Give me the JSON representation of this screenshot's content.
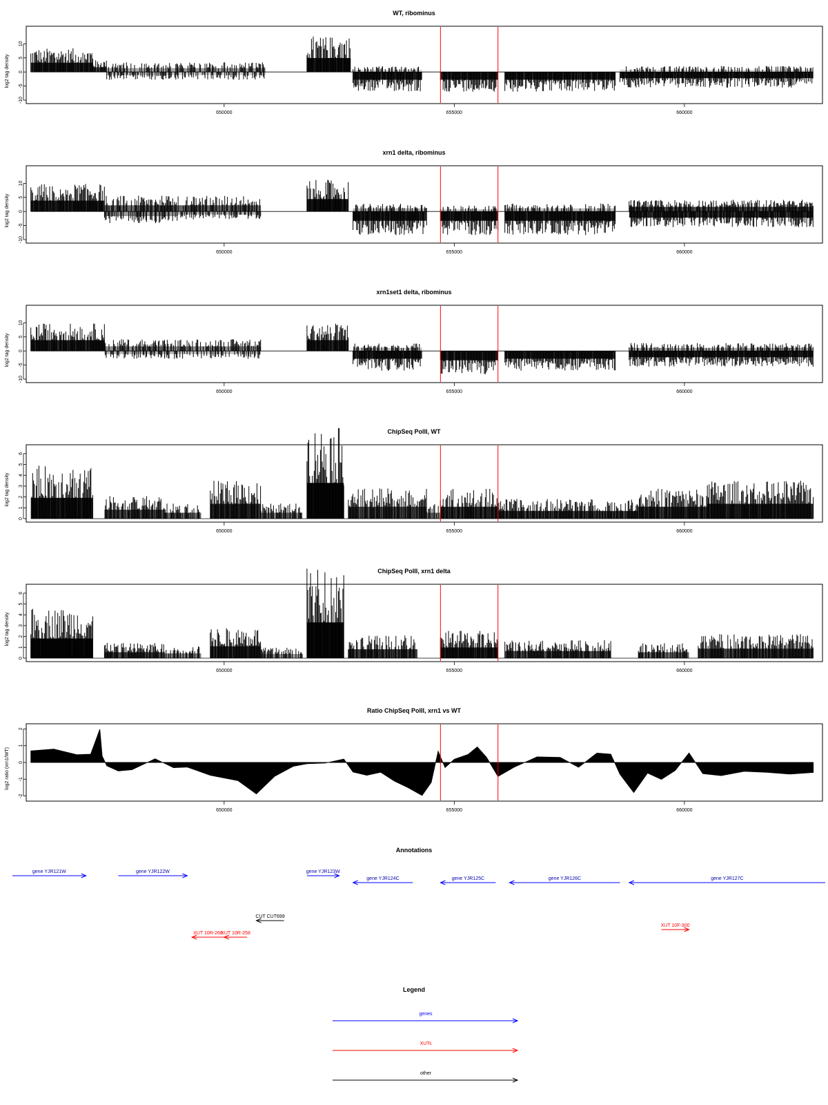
{
  "chart_data": [
    {
      "type": "bar",
      "title": "WT, ribominus",
      "ylabel": "log2 tag density",
      "xlabel": "",
      "ylim": [
        -10,
        15
      ],
      "yticks": [
        -10,
        -5,
        0,
        5,
        10
      ],
      "xlim": [
        645700,
        663000
      ],
      "xticks": [
        650000,
        655000,
        660000
      ],
      "grid": false,
      "vlines": [
        654700,
        655950
      ],
      "segments": [
        {
          "start": 645800,
          "end": 647150,
          "sign": 1,
          "level": 6,
          "fill": 0.85
        },
        {
          "start": 647150,
          "end": 647450,
          "sign": 1,
          "level": 3,
          "fill": 0.7
        },
        {
          "start": 647450,
          "end": 649000,
          "sign": 1,
          "level": 2.5,
          "fill": 0.35
        },
        {
          "start": 647450,
          "end": 649000,
          "sign": -1,
          "level": 2,
          "fill": 0.25
        },
        {
          "start": 649000,
          "end": 650900,
          "sign": 1,
          "level": 2.5,
          "fill": 0.4
        },
        {
          "start": 649000,
          "end": 650900,
          "sign": -1,
          "level": 2,
          "fill": 0.2
        },
        {
          "start": 651800,
          "end": 652750,
          "sign": 1,
          "level": 9,
          "fill": 0.9
        },
        {
          "start": 652800,
          "end": 654300,
          "sign": -1,
          "level": 5,
          "fill": 0.85
        },
        {
          "start": 652800,
          "end": 654300,
          "sign": 1,
          "level": 1.5,
          "fill": 0.15
        },
        {
          "start": 654700,
          "end": 655950,
          "sign": -1,
          "level": 5,
          "fill": 0.85
        },
        {
          "start": 656100,
          "end": 658500,
          "sign": -1,
          "level": 5,
          "fill": 0.85
        },
        {
          "start": 658600,
          "end": 662800,
          "sign": -1,
          "level": 4,
          "fill": 0.85
        },
        {
          "start": 658600,
          "end": 662800,
          "sign": 1,
          "level": 1.5,
          "fill": 0.15
        }
      ]
    },
    {
      "type": "bar",
      "title": "xrn1 delta, ribominus",
      "ylabel": "log2 tag density",
      "xlabel": "",
      "ylim": [
        -10,
        15
      ],
      "yticks": [
        -10,
        -5,
        0,
        5,
        10
      ],
      "xlim": [
        645700,
        663000
      ],
      "xticks": [
        650000,
        655000,
        660000
      ],
      "grid": false,
      "vlines": [
        654700,
        655950
      ],
      "segments": [
        {
          "start": 645800,
          "end": 647400,
          "sign": 1,
          "level": 7,
          "fill": 0.85
        },
        {
          "start": 647400,
          "end": 649000,
          "sign": 1,
          "level": 4,
          "fill": 0.6
        },
        {
          "start": 647400,
          "end": 649000,
          "sign": -1,
          "level": 3,
          "fill": 0.4
        },
        {
          "start": 649000,
          "end": 650800,
          "sign": 1,
          "level": 4,
          "fill": 0.6
        },
        {
          "start": 649000,
          "end": 650800,
          "sign": -1,
          "level": 2,
          "fill": 0.3
        },
        {
          "start": 651800,
          "end": 652700,
          "sign": 1,
          "level": 8,
          "fill": 0.9
        },
        {
          "start": 652800,
          "end": 654400,
          "sign": -1,
          "level": 6,
          "fill": 0.85
        },
        {
          "start": 652800,
          "end": 654400,
          "sign": 1,
          "level": 2,
          "fill": 0.3
        },
        {
          "start": 654700,
          "end": 655950,
          "sign": -1,
          "level": 6,
          "fill": 0.85
        },
        {
          "start": 654700,
          "end": 655950,
          "sign": 1,
          "level": 1.5,
          "fill": 0.2
        },
        {
          "start": 656100,
          "end": 658500,
          "sign": -1,
          "level": 6,
          "fill": 0.85
        },
        {
          "start": 656100,
          "end": 658500,
          "sign": 1,
          "level": 2,
          "fill": 0.25
        },
        {
          "start": 658800,
          "end": 662800,
          "sign": 1,
          "level": 3,
          "fill": 0.7
        },
        {
          "start": 658800,
          "end": 662800,
          "sign": -1,
          "level": 4,
          "fill": 0.8
        }
      ]
    },
    {
      "type": "bar",
      "title": "xrn1set1 delta, ribominus",
      "ylabel": "log2 tag density",
      "xlabel": "",
      "ylim": [
        -10,
        15
      ],
      "yticks": [
        -10,
        -5,
        0,
        5,
        10
      ],
      "xlim": [
        645700,
        663000
      ],
      "xticks": [
        650000,
        655000,
        660000
      ],
      "grid": false,
      "vlines": [
        654700,
        655950
      ],
      "segments": [
        {
          "start": 645800,
          "end": 647400,
          "sign": 1,
          "level": 7,
          "fill": 0.85
        },
        {
          "start": 647400,
          "end": 649000,
          "sign": 1,
          "level": 3,
          "fill": 0.45
        },
        {
          "start": 647400,
          "end": 649000,
          "sign": -1,
          "level": 2,
          "fill": 0.3
        },
        {
          "start": 649000,
          "end": 650800,
          "sign": 1,
          "level": 3,
          "fill": 0.45
        },
        {
          "start": 649000,
          "end": 650800,
          "sign": -1,
          "level": 2,
          "fill": 0.25
        },
        {
          "start": 651800,
          "end": 652700,
          "sign": 1,
          "level": 7,
          "fill": 0.85
        },
        {
          "start": 652800,
          "end": 654300,
          "sign": -1,
          "level": 5,
          "fill": 0.85
        },
        {
          "start": 652800,
          "end": 654300,
          "sign": 1,
          "level": 2,
          "fill": 0.25
        },
        {
          "start": 654700,
          "end": 655950,
          "sign": -1,
          "level": 6,
          "fill": 0.85
        },
        {
          "start": 656100,
          "end": 658500,
          "sign": -1,
          "level": 5,
          "fill": 0.85
        },
        {
          "start": 658800,
          "end": 662800,
          "sign": -1,
          "level": 4,
          "fill": 0.85
        },
        {
          "start": 658800,
          "end": 662800,
          "sign": 1,
          "level": 2,
          "fill": 0.35
        }
      ]
    },
    {
      "type": "bar",
      "title": "ChipSeq PolII, WT",
      "ylabel": "log2 tag density",
      "xlabel": "",
      "ylim": [
        0,
        6.5
      ],
      "yticks": [
        0,
        1,
        2,
        3,
        4,
        5,
        6
      ],
      "xlim": [
        645700,
        663000
      ],
      "xticks": [
        650000,
        655000,
        660000
      ],
      "grid": false,
      "vlines": [
        654700,
        655950
      ],
      "segments": [
        {
          "start": 645800,
          "end": 647150,
          "sign": 1,
          "level": 3.5,
          "fill": 0.9
        },
        {
          "start": 647400,
          "end": 648700,
          "sign": 1,
          "level": 1.5,
          "fill": 0.7
        },
        {
          "start": 648700,
          "end": 649500,
          "sign": 1,
          "level": 1,
          "fill": 0.6
        },
        {
          "start": 649700,
          "end": 650800,
          "sign": 1,
          "level": 2.5,
          "fill": 0.8
        },
        {
          "start": 650800,
          "end": 651700,
          "sign": 1,
          "level": 1,
          "fill": 0.5
        },
        {
          "start": 651800,
          "end": 652600,
          "sign": 1,
          "level": 6,
          "fill": 0.95
        },
        {
          "start": 652700,
          "end": 654400,
          "sign": 1,
          "level": 2,
          "fill": 0.7
        },
        {
          "start": 654400,
          "end": 654700,
          "sign": 1,
          "level": 1,
          "fill": 0.5
        },
        {
          "start": 654700,
          "end": 655950,
          "sign": 1,
          "level": 2,
          "fill": 0.8
        },
        {
          "start": 655950,
          "end": 659000,
          "sign": 1,
          "level": 1.3,
          "fill": 0.75
        },
        {
          "start": 659000,
          "end": 660500,
          "sign": 1,
          "level": 2,
          "fill": 0.8
        },
        {
          "start": 660500,
          "end": 662800,
          "sign": 1,
          "level": 2.5,
          "fill": 0.85
        }
      ]
    },
    {
      "type": "bar",
      "title": "ChipSeq PolII, xrn1 delta",
      "ylabel": "log2 tag density",
      "xlabel": "",
      "ylim": [
        0,
        6.5
      ],
      "yticks": [
        0,
        1,
        2,
        3,
        4,
        5,
        6
      ],
      "xlim": [
        645700,
        663000
      ],
      "xticks": [
        650000,
        655000,
        660000
      ],
      "grid": false,
      "vlines": [
        654700,
        655950
      ],
      "segments": [
        {
          "start": 645800,
          "end": 647150,
          "sign": 1,
          "level": 3.3,
          "fill": 0.95
        },
        {
          "start": 647400,
          "end": 648700,
          "sign": 1,
          "level": 1,
          "fill": 0.7
        },
        {
          "start": 648700,
          "end": 649500,
          "sign": 1,
          "level": 0.8,
          "fill": 0.5
        },
        {
          "start": 649700,
          "end": 650800,
          "sign": 1,
          "level": 2,
          "fill": 0.8
        },
        {
          "start": 650800,
          "end": 651700,
          "sign": 1,
          "level": 0.7,
          "fill": 0.4
        },
        {
          "start": 651800,
          "end": 652600,
          "sign": 1,
          "level": 6,
          "fill": 0.95
        },
        {
          "start": 652700,
          "end": 654200,
          "sign": 1,
          "level": 1.5,
          "fill": 0.75
        },
        {
          "start": 654700,
          "end": 655950,
          "sign": 1,
          "level": 1.8,
          "fill": 0.85
        },
        {
          "start": 656100,
          "end": 658400,
          "sign": 1,
          "level": 1.2,
          "fill": 0.7
        },
        {
          "start": 659000,
          "end": 660100,
          "sign": 1,
          "level": 1,
          "fill": 0.6
        },
        {
          "start": 660300,
          "end": 662800,
          "sign": 1,
          "level": 1.6,
          "fill": 0.75
        }
      ]
    },
    {
      "type": "area",
      "title": "Ratio ChipSeq PolII, xrn1 vs WT",
      "ylabel": "log2 ratio (xrn1/WT)",
      "xlabel": "",
      "ylim": [
        -2.1,
        2.1
      ],
      "yticks": [
        -2,
        -1,
        0,
        1,
        2
      ],
      "xlim": [
        645700,
        663000
      ],
      "xticks": [
        650000,
        655000,
        660000
      ],
      "grid": false,
      "vlines": [
        654700,
        655950
      ],
      "x": [
        645800,
        646300,
        646800,
        647100,
        647300,
        647350,
        647450,
        647700,
        648000,
        648500,
        648900,
        649200,
        649700,
        650300,
        650700,
        651100,
        651500,
        651800,
        652200,
        652600,
        652800,
        653100,
        653400,
        653700,
        654000,
        654300,
        654500,
        654650,
        654800,
        655000,
        655300,
        655500,
        655700,
        655950,
        656300,
        656800,
        657300,
        657700,
        658100,
        658400,
        658600,
        658900,
        659200,
        659500,
        659800,
        660100,
        660400,
        660800,
        661300,
        661800,
        662300,
        662800
      ],
      "y": [
        0.7,
        0.8,
        0.5,
        0.5,
        2.0,
        0.4,
        -0.2,
        -0.5,
        -0.4,
        0.2,
        -0.3,
        -0.3,
        -0.8,
        -1.1,
        -1.9,
        -0.8,
        -0.2,
        -0.1,
        0.0,
        0.2,
        -0.6,
        -0.8,
        -0.6,
        -1.1,
        -1.5,
        -2.0,
        -1.2,
        0.7,
        -0.3,
        0.2,
        0.5,
        0.9,
        0.3,
        -0.8,
        -0.3,
        0.3,
        0.3,
        -0.3,
        0.6,
        0.5,
        -0.7,
        -1.8,
        -0.6,
        -1.0,
        -0.5,
        0.6,
        -0.7,
        -0.8,
        -0.5,
        -0.6,
        -0.7,
        -0.6
      ]
    }
  ],
  "annotations": {
    "title": "Annotations",
    "features": [
      {
        "label": "gene YJR121W",
        "kind": "gene",
        "strand": "+",
        "start": 645400,
        "end": 647000
      },
      {
        "label": "gene YJR122W",
        "kind": "gene",
        "strand": "+",
        "start": 647700,
        "end": 649200
      },
      {
        "label": "gene YJR123W",
        "kind": "gene",
        "strand": "+",
        "start": 651800,
        "end": 652500
      },
      {
        "label": "gene YJR124C",
        "kind": "gene",
        "strand": "-",
        "start": 652800,
        "end": 654100
      },
      {
        "label": "gene YJR125C",
        "kind": "gene",
        "strand": "-",
        "start": 654700,
        "end": 655900
      },
      {
        "label": "gene YJR126C",
        "kind": "gene",
        "strand": "-",
        "start": 656200,
        "end": 658600
      },
      {
        "label": "gene YJR127C",
        "kind": "gene",
        "strand": "-",
        "start": 658800,
        "end": 663300
      },
      {
        "label": "CUT CUT699",
        "kind": "other",
        "strand": "-",
        "start": 650700,
        "end": 651300
      },
      {
        "label": "XUT 10R-266",
        "kind": "XUT",
        "strand": "-",
        "start": 649300,
        "end": 650000
      },
      {
        "label": "XUT 10R-258",
        "kind": "XUT",
        "strand": "-",
        "start": 650000,
        "end": 650500
      },
      {
        "label": "XUT 10F-300",
        "kind": "XUT",
        "strand": "+",
        "start": 659500,
        "end": 660100
      }
    ]
  },
  "legend": {
    "title": "Legend",
    "items": [
      {
        "label": "genes",
        "color": "#0000ff"
      },
      {
        "label": "XUTs",
        "color": "#ff0000"
      },
      {
        "label": "other",
        "color": "#000000"
      }
    ]
  },
  "colors": {
    "signal": "#000000",
    "marker": "#ff0000",
    "gene": "#0000ff",
    "gene_text": "#0000aa",
    "xut": "#ff0000",
    "other": "#000000"
  }
}
